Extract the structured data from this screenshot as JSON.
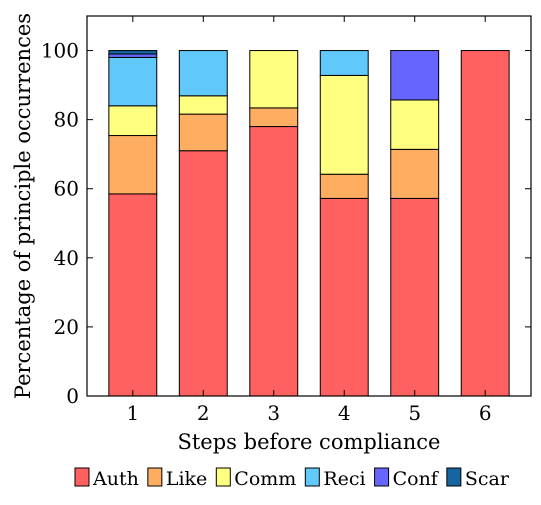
{
  "chart_data": {
    "type": "bar",
    "stacked": true,
    "categories": [
      "1",
      "2",
      "3",
      "4",
      "5",
      "6"
    ],
    "series": [
      {
        "name": "Auth",
        "color": "#ff6161",
        "values": [
          58.5,
          71.0,
          78.0,
          57.2,
          57.2,
          100.0
        ]
      },
      {
        "name": "Like",
        "color": "#ffad61",
        "values": [
          16.9,
          10.6,
          5.4,
          7.0,
          14.2,
          0
        ]
      },
      {
        "name": "Comm",
        "color": "#ffff80",
        "values": [
          8.6,
          5.3,
          16.6,
          28.6,
          14.3,
          0
        ]
      },
      {
        "name": "Reci",
        "color": "#61c8fa",
        "values": [
          14.0,
          13.1,
          0,
          7.2,
          0,
          0
        ]
      },
      {
        "name": "Conf",
        "color": "#6666ff",
        "values": [
          1.0,
          0,
          0,
          0,
          14.3,
          0
        ]
      },
      {
        "name": "Scar",
        "color": "#1565a0",
        "values": [
          1.0,
          0,
          0,
          0,
          0,
          0
        ]
      }
    ],
    "xlabel": "Steps before compliance",
    "ylabel": "Percentage of principle occurrences",
    "ylim": [
      0,
      110
    ],
    "yticks": [
      0,
      20,
      40,
      60,
      80,
      100
    ],
    "grid": false,
    "legend": "bottom"
  }
}
